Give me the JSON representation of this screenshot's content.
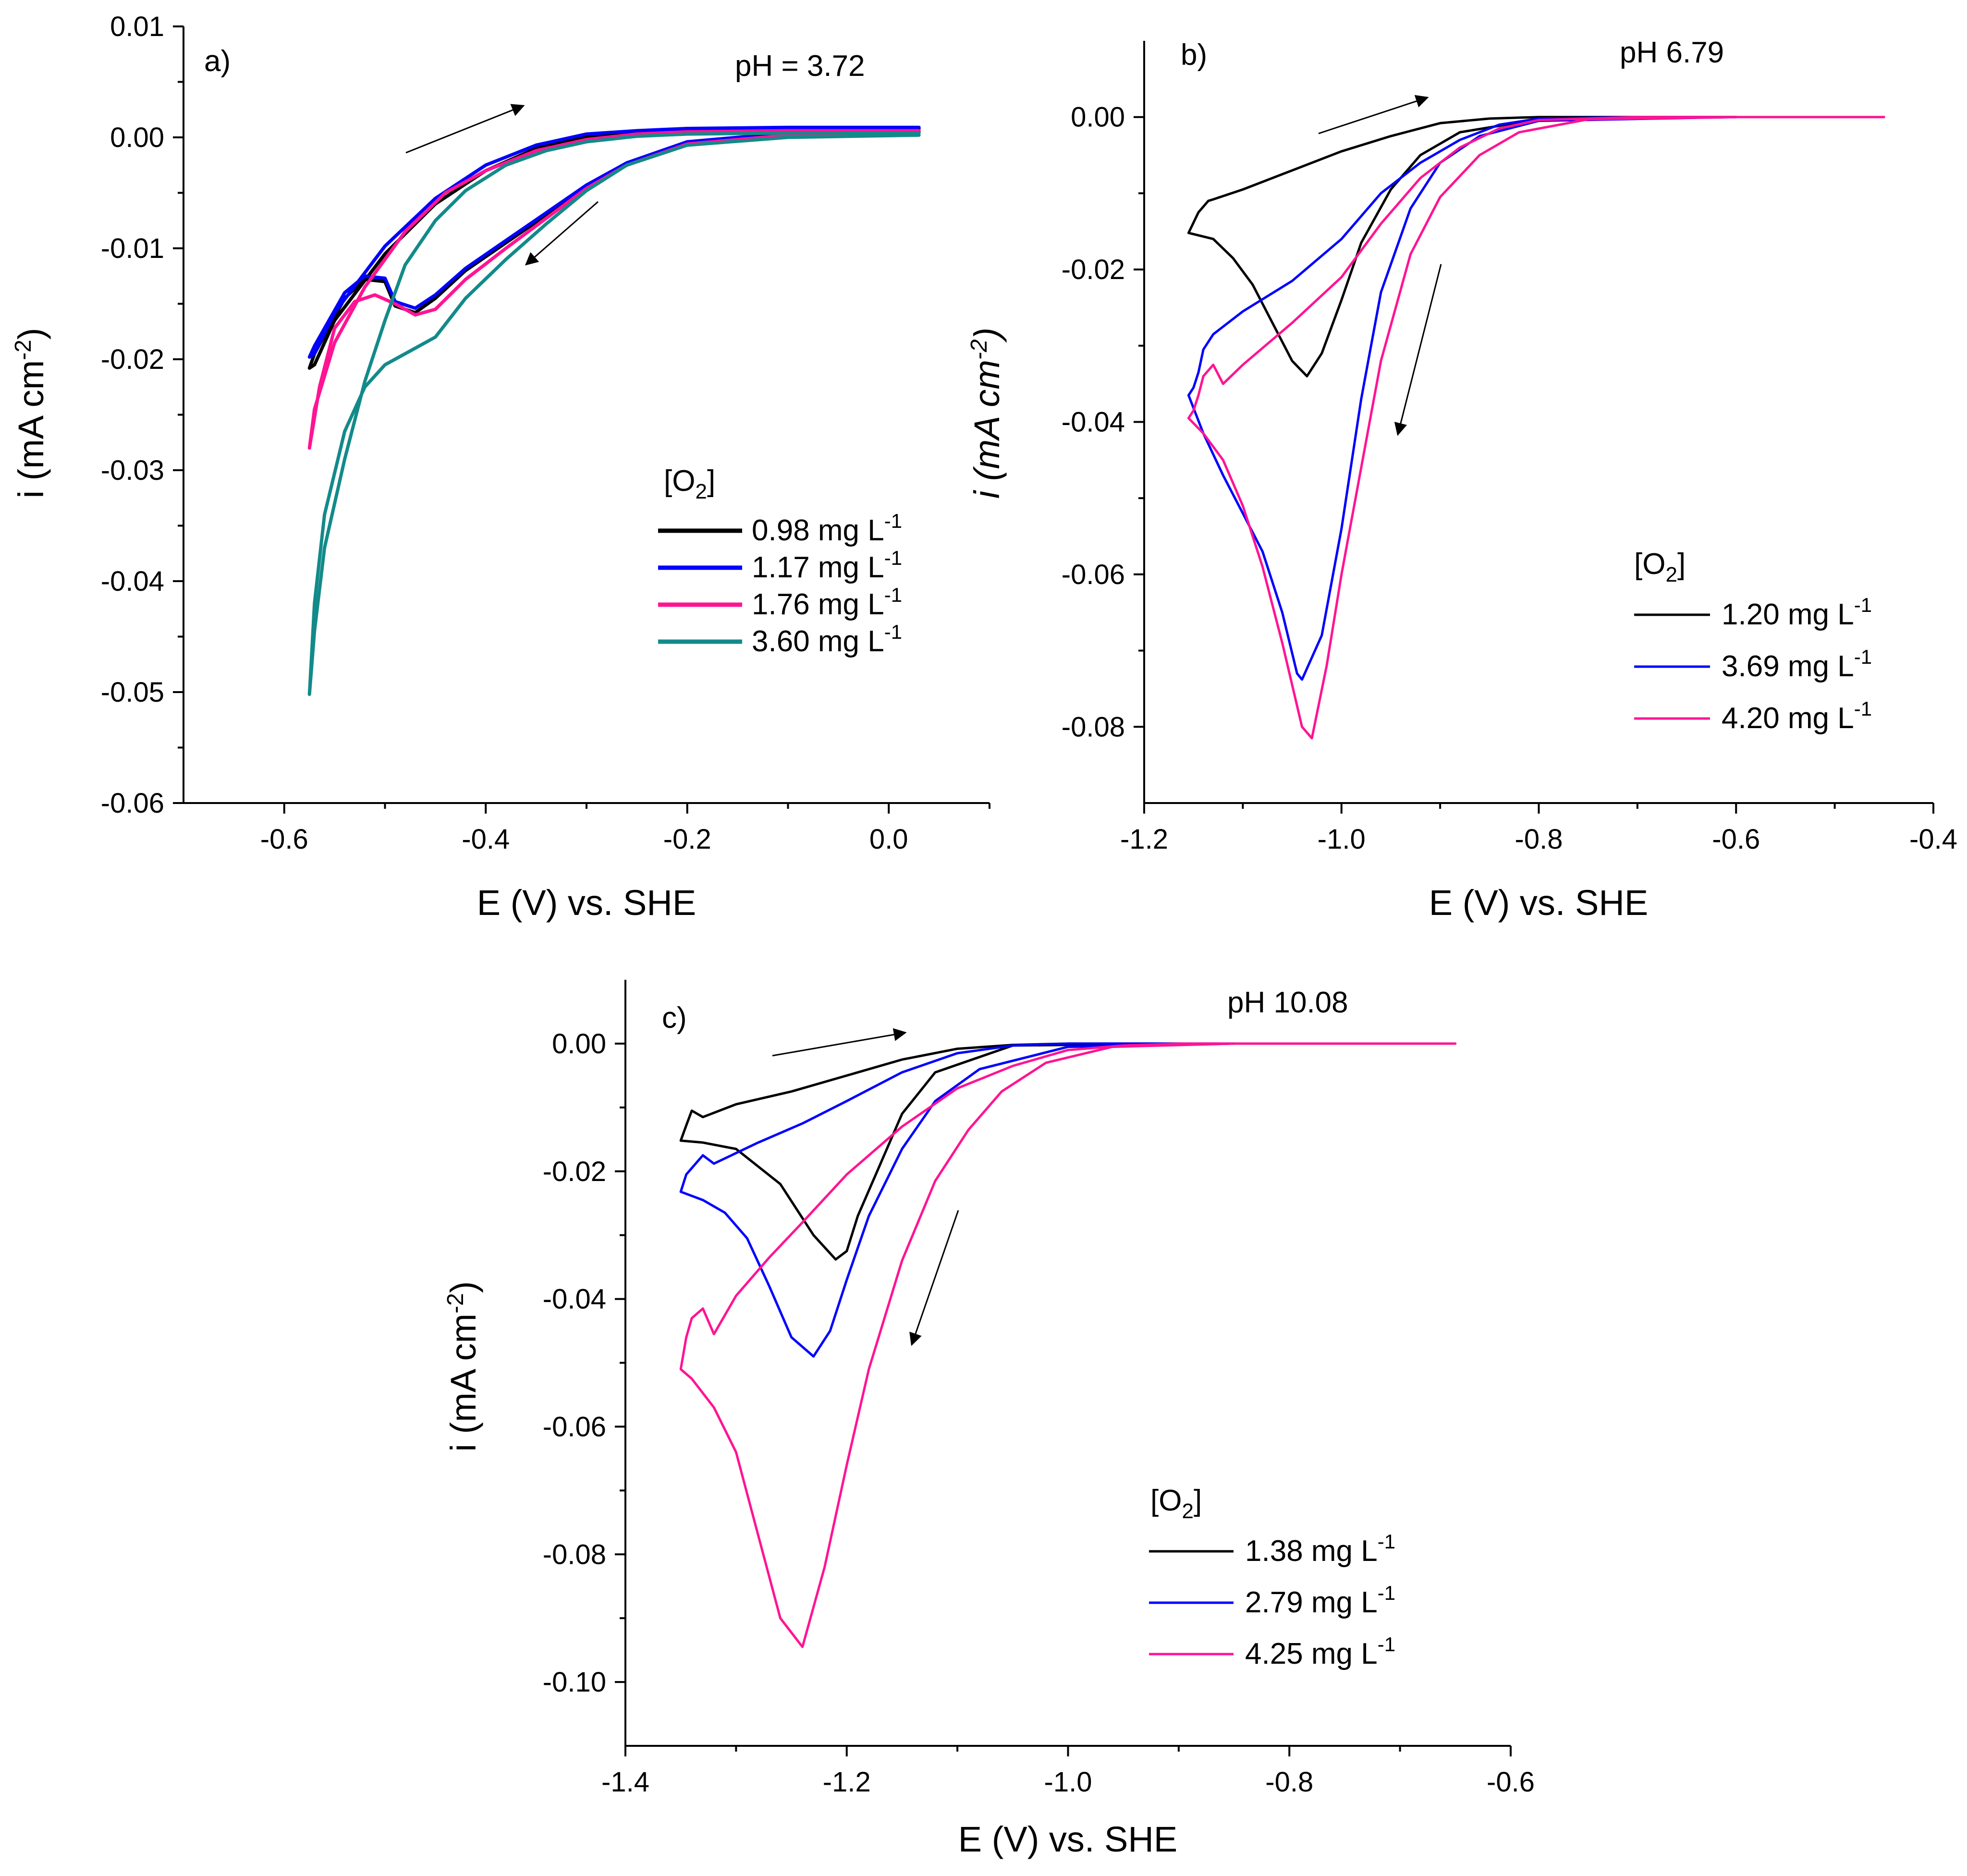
{
  "chart_data": [
    {
      "type": "line",
      "panel_label": "a)",
      "annotation": "pH = 3.72",
      "xlabel": "E (V) vs. SHE",
      "ylabel": "i (mA cm-2)",
      "xlim": [
        -0.7,
        0.1
      ],
      "ylim": [
        -0.06,
        0.01
      ],
      "xticks": [
        -0.6,
        -0.4,
        -0.2,
        0.0
      ],
      "xtick_labels": [
        "-0.6",
        "-0.4",
        "-0.2",
        "0.0"
      ],
      "yticks": [
        -0.06,
        -0.05,
        -0.04,
        -0.03,
        -0.02,
        -0.01,
        0.0,
        0.01
      ],
      "ytick_labels": [
        "-0.06",
        "-0.05",
        "-0.04",
        "-0.03",
        "-0.02",
        "-0.01",
        "0.00",
        "0.01"
      ],
      "legend_title": "[O2]",
      "series": [
        {
          "name": "0.98 mg L-1",
          "color": "#000000",
          "x": [
            0.03,
            -0.1,
            -0.2,
            -0.26,
            -0.3,
            -0.34,
            -0.38,
            -0.42,
            -0.45,
            -0.47,
            -0.49,
            -0.5,
            -0.52,
            -0.54,
            -0.57,
            -0.575,
            -0.57,
            -0.55,
            -0.5,
            -0.45,
            -0.4,
            -0.35,
            -0.3,
            -0.25,
            -0.2,
            -0.1,
            0.03
          ],
          "y": [
            0.0005,
            0.0003,
            -0.0005,
            -0.0025,
            -0.0045,
            -0.007,
            -0.0095,
            -0.012,
            -0.0145,
            -0.0158,
            -0.0152,
            -0.013,
            -0.0128,
            -0.0145,
            -0.0195,
            -0.0208,
            -0.0205,
            -0.0165,
            -0.0105,
            -0.006,
            -0.003,
            -0.001,
            0.0001,
            0.0005,
            0.0007,
            0.0008,
            0.0008
          ]
        },
        {
          "name": "1.17 mg L-1",
          "color": "#0000ff",
          "x": [
            0.03,
            -0.1,
            -0.2,
            -0.26,
            -0.3,
            -0.34,
            -0.38,
            -0.42,
            -0.45,
            -0.47,
            -0.49,
            -0.5,
            -0.52,
            -0.54,
            -0.57,
            -0.575,
            -0.57,
            -0.55,
            -0.5,
            -0.45,
            -0.4,
            -0.35,
            -0.3,
            -0.25,
            -0.2,
            -0.1,
            0.03
          ],
          "y": [
            0.0006,
            0.0004,
            -0.0004,
            -0.0023,
            -0.0043,
            -0.0068,
            -0.0093,
            -0.0118,
            -0.0142,
            -0.0154,
            -0.0148,
            -0.0127,
            -0.0125,
            -0.014,
            -0.0188,
            -0.0198,
            -0.0195,
            -0.0158,
            -0.0098,
            -0.0055,
            -0.0025,
            -0.0007,
            0.0003,
            0.0006,
            0.0008,
            0.0009,
            0.0009
          ]
        },
        {
          "name": "1.76 mg L-1",
          "color": "#ff1493",
          "x": [
            0.03,
            -0.1,
            -0.2,
            -0.26,
            -0.3,
            -0.34,
            -0.38,
            -0.42,
            -0.45,
            -0.47,
            -0.49,
            -0.51,
            -0.53,
            -0.55,
            -0.565,
            -0.575,
            -0.57,
            -0.55,
            -0.52,
            -0.48,
            -0.44,
            -0.4,
            -0.35,
            -0.3,
            -0.25,
            -0.2,
            -0.1,
            0.03
          ],
          "y": [
            0.0004,
            0.0002,
            -0.0006,
            -0.0025,
            -0.0046,
            -0.0073,
            -0.01,
            -0.0128,
            -0.0155,
            -0.016,
            -0.015,
            -0.0142,
            -0.0148,
            -0.0172,
            -0.0225,
            -0.028,
            -0.0245,
            -0.0185,
            -0.0135,
            -0.0085,
            -0.005,
            -0.003,
            -0.0012,
            -0.0002,
            0.0003,
            0.0005,
            0.0006,
            0.0006
          ]
        },
        {
          "name": "3.60 mg L-1",
          "color": "#138a8a",
          "x": [
            0.03,
            -0.1,
            -0.2,
            -0.26,
            -0.3,
            -0.34,
            -0.38,
            -0.42,
            -0.45,
            -0.48,
            -0.5,
            -0.52,
            -0.54,
            -0.56,
            -0.57,
            -0.575,
            -0.57,
            -0.56,
            -0.54,
            -0.52,
            -0.5,
            -0.48,
            -0.45,
            -0.42,
            -0.38,
            -0.34,
            -0.3,
            -0.25,
            -0.2,
            -0.1,
            0.03
          ],
          "y": [
            0.0002,
            0.0,
            -0.0007,
            -0.0025,
            -0.0048,
            -0.0078,
            -0.011,
            -0.0145,
            -0.018,
            -0.0195,
            -0.0205,
            -0.0225,
            -0.0265,
            -0.034,
            -0.042,
            -0.0502,
            -0.0445,
            -0.037,
            -0.029,
            -0.022,
            -0.0165,
            -0.0115,
            -0.0075,
            -0.0048,
            -0.0025,
            -0.0012,
            -0.0004,
            0.0001,
            0.0003,
            0.0004,
            0.0004
          ]
        }
      ]
    },
    {
      "type": "line",
      "panel_label": "b)",
      "annotation": "pH 6.79",
      "xlabel": "E (V) vs. SHE",
      "ylabel": "i (mA cm-2)",
      "xlim": [
        -1.2,
        -0.4
      ],
      "ylim": [
        -0.09,
        0.01
      ],
      "xticks": [
        -1.2,
        -1.0,
        -0.8,
        -0.6,
        -0.4
      ],
      "xtick_labels": [
        "-1.2",
        "-1.0",
        "-0.8",
        "-0.6",
        "-0.4"
      ],
      "yticks": [
        -0.08,
        -0.06,
        -0.04,
        -0.02,
        0.0
      ],
      "ytick_labels": [
        "-0.08",
        "-0.06",
        "-0.04",
        "-0.02",
        "0.00"
      ],
      "legend_title": "[O2]",
      "series": [
        {
          "name": "1.20 mg L-1",
          "color": "#000000",
          "x": [
            -0.6,
            -0.8,
            -0.88,
            -0.92,
            -0.95,
            -0.98,
            -1.0,
            -1.02,
            -1.035,
            -1.05,
            -1.07,
            -1.09,
            -1.11,
            -1.13,
            -1.155,
            -1.145,
            -1.135,
            -1.13,
            -1.1,
            -1.05,
            -1.0,
            -0.95,
            -0.9,
            -0.85,
            -0.8,
            -0.7,
            -0.6
          ],
          "y": [
            0.0,
            -0.0003,
            -0.002,
            -0.005,
            -0.0095,
            -0.0165,
            -0.024,
            -0.031,
            -0.034,
            -0.032,
            -0.027,
            -0.022,
            -0.0185,
            -0.016,
            -0.0152,
            -0.0125,
            -0.011,
            -0.0108,
            -0.0095,
            -0.007,
            -0.0045,
            -0.0025,
            -0.0008,
            -0.0002,
            0.0,
            0.0,
            0.0
          ]
        },
        {
          "name": "3.69 mg L-1",
          "color": "#0000ff",
          "x": [
            -0.6,
            -0.8,
            -0.86,
            -0.9,
            -0.93,
            -0.96,
            -0.98,
            -1.0,
            -1.02,
            -1.04,
            -1.045,
            -1.06,
            -1.08,
            -1.1,
            -1.12,
            -1.14,
            -1.155,
            -1.15,
            -1.145,
            -1.14,
            -1.13,
            -1.1,
            -1.05,
            -1.0,
            -0.96,
            -0.92,
            -0.88,
            -0.84,
            -0.8,
            -0.7,
            -0.6
          ],
          "y": [
            0.0,
            -0.0005,
            -0.0025,
            -0.006,
            -0.012,
            -0.023,
            -0.037,
            -0.054,
            -0.068,
            -0.0738,
            -0.073,
            -0.065,
            -0.057,
            -0.052,
            -0.047,
            -0.0415,
            -0.0365,
            -0.0355,
            -0.0335,
            -0.0305,
            -0.0285,
            -0.0255,
            -0.0215,
            -0.016,
            -0.01,
            -0.006,
            -0.003,
            -0.001,
            -0.0002,
            0.0,
            0.0
          ]
        },
        {
          "name": "4.20 mg L-1",
          "color": "#ff1493",
          "x": [
            -0.45,
            -0.6,
            -0.75,
            -0.82,
            -0.86,
            -0.9,
            -0.93,
            -0.96,
            -0.98,
            -1.0,
            -1.015,
            -1.03,
            -1.04,
            -1.06,
            -1.08,
            -1.1,
            -1.12,
            -1.14,
            -1.155,
            -1.15,
            -1.145,
            -1.14,
            -1.13,
            -1.12,
            -1.1,
            -1.05,
            -1.0,
            -0.96,
            -0.92,
            -0.88,
            -0.84,
            -0.8,
            -0.7,
            -0.6,
            -0.45
          ],
          "y": [
            0.0,
            0.0,
            -0.0003,
            -0.002,
            -0.005,
            -0.0105,
            -0.018,
            -0.032,
            -0.046,
            -0.06,
            -0.072,
            -0.0815,
            -0.08,
            -0.069,
            -0.059,
            -0.051,
            -0.045,
            -0.0415,
            -0.0395,
            -0.0385,
            -0.0365,
            -0.034,
            -0.0325,
            -0.035,
            -0.0325,
            -0.027,
            -0.021,
            -0.014,
            -0.008,
            -0.004,
            -0.0015,
            -0.0004,
            0.0,
            0.0,
            0.0
          ]
        }
      ]
    },
    {
      "type": "line",
      "panel_label": "c)",
      "annotation": "pH 10.08",
      "xlabel": "E (V) vs. SHE",
      "ylabel": "i (mA cm-2)",
      "xlim": [
        -1.4,
        -0.6
      ],
      "ylim": [
        -0.11,
        0.01
      ],
      "xticks": [
        -1.4,
        -1.2,
        -1.0,
        -0.8,
        -0.6
      ],
      "xtick_labels": [
        "-1.4",
        "-1.2",
        "-1.0",
        "-0.8",
        "-0.6"
      ],
      "yticks": [
        -0.1,
        -0.08,
        -0.06,
        -0.04,
        -0.02,
        0.0
      ],
      "ytick_labels": [
        "-0.10",
        "-0.08",
        "-0.06",
        "-0.04",
        "-0.02",
        "0.00"
      ],
      "legend_title": "[O2]",
      "series": [
        {
          "name": "1.38 mg L-1",
          "color": "#000000",
          "x": [
            -0.9,
            -1.05,
            -1.12,
            -1.15,
            -1.17,
            -1.19,
            -1.2,
            -1.21,
            -1.23,
            -1.26,
            -1.3,
            -1.33,
            -1.35,
            -1.345,
            -1.34,
            -1.33,
            -1.3,
            -1.25,
            -1.2,
            -1.15,
            -1.1,
            -1.05,
            -1.0,
            -0.95,
            -0.9
          ],
          "y": [
            0.0,
            -0.0003,
            -0.0045,
            -0.011,
            -0.019,
            -0.027,
            -0.0325,
            -0.0338,
            -0.03,
            -0.022,
            -0.0165,
            -0.0155,
            -0.0152,
            -0.0128,
            -0.0105,
            -0.0115,
            -0.0095,
            -0.0075,
            -0.005,
            -0.0025,
            -0.0008,
            -0.0002,
            0.0,
            0.0,
            0.0
          ]
        },
        {
          "name": "2.79 mg L-1",
          "color": "#0000ff",
          "x": [
            -0.85,
            -1.0,
            -1.08,
            -1.12,
            -1.15,
            -1.18,
            -1.2,
            -1.215,
            -1.23,
            -1.25,
            -1.27,
            -1.29,
            -1.31,
            -1.33,
            -1.35,
            -1.345,
            -1.335,
            -1.33,
            -1.32,
            -1.28,
            -1.24,
            -1.2,
            -1.15,
            -1.1,
            -1.05,
            -1.0,
            -0.95,
            -0.85
          ],
          "y": [
            0.0,
            -0.0005,
            -0.004,
            -0.009,
            -0.0165,
            -0.027,
            -0.037,
            -0.045,
            -0.049,
            -0.046,
            -0.038,
            -0.0305,
            -0.0265,
            -0.0245,
            -0.0232,
            -0.0205,
            -0.0185,
            -0.0175,
            -0.0188,
            -0.0155,
            -0.0125,
            -0.009,
            -0.0045,
            -0.0015,
            -0.0003,
            0.0,
            0.0,
            0.0
          ]
        },
        {
          "name": "4.25 mg L-1",
          "color": "#ff1493",
          "x": [
            -0.65,
            -0.85,
            -0.96,
            -1.02,
            -1.06,
            -1.09,
            -1.12,
            -1.15,
            -1.18,
            -1.2,
            -1.22,
            -1.24,
            -1.26,
            -1.28,
            -1.3,
            -1.32,
            -1.34,
            -1.35,
            -1.345,
            -1.34,
            -1.33,
            -1.32,
            -1.3,
            -1.27,
            -1.24,
            -1.2,
            -1.15,
            -1.1,
            -1.05,
            -1.0,
            -0.95,
            -0.9,
            -0.8,
            -0.65
          ],
          "y": [
            0.0,
            0.0,
            -0.0005,
            -0.003,
            -0.0075,
            -0.0135,
            -0.0215,
            -0.034,
            -0.051,
            -0.066,
            -0.082,
            -0.0945,
            -0.09,
            -0.077,
            -0.064,
            -0.057,
            -0.0525,
            -0.051,
            -0.046,
            -0.043,
            -0.0415,
            -0.0455,
            -0.0395,
            -0.0335,
            -0.028,
            -0.0205,
            -0.013,
            -0.007,
            -0.0035,
            -0.001,
            -0.0003,
            0.0,
            0.0,
            0.0
          ]
        }
      ]
    }
  ]
}
